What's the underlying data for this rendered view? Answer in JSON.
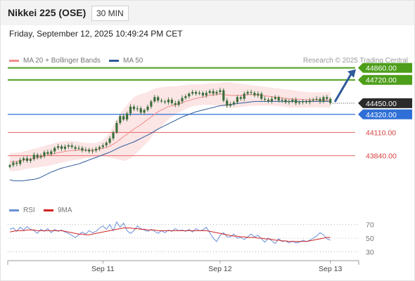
{
  "header": {
    "title": "Nikkei 225 (OSE)",
    "timeframe": "30 MIN",
    "datetime": "Friday, September 12, 2025 10:49:24 PM CET"
  },
  "legend": {
    "ma20_label": "MA 20 + Bollinger Bands",
    "ma50_label": "MA 50",
    "rsi_label": "RSI",
    "rsi9ma_label": "9MA",
    "credit": "Research © 2025 Trading Central"
  },
  "colors": {
    "ma20": "#f28b8b",
    "ma50": "#2d5a9a",
    "bollinger_fill": "#fbdcdc",
    "candle": "#3c6e3c",
    "resistance": "#4d9e1a",
    "support_pivot": "#2f6fd6",
    "support": "#e86a6a",
    "last_price": "#2b2b2b",
    "rsi": "#6a8fd8",
    "rsi_ma": "#d22222"
  },
  "chart_data": {
    "type": "candlestick",
    "price_levels": [
      {
        "label": "44860.00",
        "value": 44860,
        "kind": "resistance"
      },
      {
        "label": "44720.00",
        "value": 44720,
        "kind": "resistance"
      },
      {
        "label": "44450.00",
        "value": 44450,
        "kind": "last"
      },
      {
        "label": "44320.00",
        "value": 44320,
        "kind": "pivot"
      },
      {
        "label": "44110.00",
        "value": 44110,
        "kind": "support"
      },
      {
        "label": "43840.00",
        "value": 43840,
        "kind": "support"
      }
    ],
    "x_tick_labels": [
      "Sep 11",
      "Sep 12",
      "Sep 13"
    ],
    "x_tick_index": [
      27,
      61,
      93
    ],
    "rsi_ticks": [
      70,
      50,
      30
    ],
    "rsi_range": [
      20,
      80
    ],
    "price_range": [
      43380,
      44930
    ],
    "closes": [
      43730,
      43760,
      43745,
      43790,
      43810,
      43780,
      43800,
      43850,
      43820,
      43835,
      43880,
      43860,
      43890,
      43930,
      43950,
      43920,
      43945,
      43960,
      43940,
      43920,
      43930,
      43900,
      43910,
      43890,
      43900,
      43920,
      43940,
      43960,
      43990,
      44040,
      44110,
      44220,
      44300,
      44260,
      44330,
      44410,
      44380,
      44390,
      44340,
      44370,
      44410,
      44470,
      44520,
      44480,
      44470,
      44460,
      44490,
      44450,
      44430,
      44470,
      44510,
      44530,
      44560,
      44580,
      44560,
      44570,
      44540,
      44570,
      44590,
      44560,
      44580,
      44600,
      44480,
      44420,
      44440,
      44460,
      44520,
      44500,
      44560,
      44580,
      44570,
      44540,
      44560,
      44500,
      44490,
      44470,
      44500,
      44520,
      44480,
      44490,
      44460,
      44470,
      44490,
      44450,
      44460,
      44470,
      44460,
      44480,
      44490,
      44500,
      44470,
      44520,
      44500,
      44450
    ],
    "ma20": [
      43770,
      43770,
      43775,
      43780,
      43790,
      43795,
      43800,
      43810,
      43815,
      43825,
      43835,
      43845,
      43855,
      43865,
      43875,
      43880,
      43890,
      43895,
      43900,
      43900,
      43905,
      43905,
      43905,
      43905,
      43905,
      43910,
      43915,
      43925,
      43935,
      43950,
      43975,
      44000,
      44030,
      44060,
      44090,
      44120,
      44150,
      44175,
      44200,
      44230,
      44260,
      44290,
      44320,
      44350,
      44370,
      44390,
      44410,
      44420,
      44430,
      44440,
      44455,
      44470,
      44480,
      44495,
      44505,
      44515,
      44520,
      44530,
      44540,
      44545,
      44550,
      44555,
      44550,
      44545,
      44540,
      44540,
      44540,
      44540,
      44545,
      44550,
      44550,
      44545,
      44545,
      44540,
      44535,
      44530,
      44525,
      44520,
      44515,
      44510,
      44505,
      44500,
      44500,
      44495,
      44495,
      44490,
      44490,
      44490,
      44490,
      44490,
      44485,
      44485,
      44485,
      44485
    ],
    "bb_upper": [
      43870,
      43870,
      43875,
      43880,
      43890,
      43900,
      43910,
      43920,
      43930,
      43940,
      43955,
      43965,
      43975,
      43985,
      43995,
      44000,
      44005,
      44010,
      44010,
      44005,
      44000,
      43995,
      43990,
      43985,
      43985,
      43990,
      44000,
      44020,
      44060,
      44110,
      44180,
      44260,
      44330,
      44380,
      44430,
      44480,
      44520,
      44540,
      44555,
      44565,
      44580,
      44600,
      44620,
      44630,
      44635,
      44640,
      44645,
      44645,
      44645,
      44650,
      44655,
      44660,
      44665,
      44670,
      44670,
      44670,
      44670,
      44675,
      44680,
      44680,
      44680,
      44685,
      44690,
      44690,
      44690,
      44685,
      44680,
      44675,
      44670,
      44665,
      44660,
      44655,
      44650,
      44645,
      44640,
      44635,
      44630,
      44625,
      44620,
      44615,
      44610,
      44605,
      44600,
      44595,
      44590,
      44585,
      44580,
      44575,
      44575,
      44575,
      44575,
      44575,
      44575,
      44575
    ],
    "bb_lower": [
      43660,
      43660,
      43665,
      43670,
      43680,
      43690,
      43695,
      43700,
      43705,
      43710,
      43715,
      43720,
      43730,
      43740,
      43750,
      43760,
      43770,
      43780,
      43785,
      43790,
      43795,
      43800,
      43810,
      43815,
      43820,
      43825,
      43830,
      43830,
      43825,
      43820,
      43810,
      43800,
      43790,
      43780,
      43790,
      43810,
      43840,
      43880,
      43920,
      43960,
      44000,
      44050,
      44100,
      44140,
      44180,
      44220,
      44260,
      44290,
      44320,
      44340,
      44360,
      44380,
      44400,
      44410,
      44420,
      44425,
      44430,
      44430,
      44430,
      44425,
      44420,
      44420,
      44410,
      44400,
      44395,
      44395,
      44400,
      44405,
      44410,
      44415,
      44420,
      44420,
      44420,
      44420,
      44420,
      44420,
      44420,
      44420,
      44415,
      44410,
      44405,
      44400,
      44400,
      44400,
      44400,
      44400,
      44400,
      44400,
      44400,
      44405,
      44400,
      44400,
      44400,
      44395
    ],
    "ma50": [
      43560,
      43550,
      43550,
      43550,
      43550,
      43555,
      43560,
      43565,
      43575,
      43590,
      43610,
      43630,
      43650,
      43665,
      43680,
      43695,
      43705,
      43715,
      43725,
      43735,
      43745,
      43760,
      43775,
      43790,
      43805,
      43820,
      43835,
      43850,
      43865,
      43880,
      43900,
      43920,
      43940,
      43955,
      43970,
      43985,
      44000,
      44020,
      44040,
      44060,
      44080,
      44100,
      44125,
      44150,
      44170,
      44190,
      44210,
      44230,
      44250,
      44270,
      44290,
      44305,
      44320,
      44335,
      44350,
      44360,
      44370,
      44380,
      44390,
      44400,
      44410,
      44420,
      44425,
      44430,
      44435,
      44440,
      44445,
      44450,
      44455,
      44460,
      44465,
      44470,
      44470,
      44470,
      44470,
      44470,
      44470,
      44470,
      44470,
      44470,
      44470,
      44470,
      44470,
      44470,
      44470,
      44470,
      44470,
      44470,
      44470,
      44470,
      44470,
      44470,
      44470,
      44470
    ],
    "rsi": [
      63,
      65,
      60,
      66,
      62,
      67,
      63,
      61,
      57,
      63,
      60,
      64,
      58,
      63,
      60,
      62,
      59,
      57,
      54,
      51,
      55,
      59,
      56,
      61,
      58,
      60,
      65,
      68,
      63,
      70,
      61,
      74,
      66,
      72,
      61,
      57,
      61,
      68,
      64,
      62,
      60,
      63,
      60,
      57,
      61,
      58,
      62,
      60,
      64,
      61,
      62,
      60,
      63,
      59,
      64,
      61,
      62,
      66,
      58,
      50,
      45,
      54,
      58,
      52,
      52,
      56,
      50,
      51,
      48,
      52,
      56,
      52,
      54,
      49,
      44,
      50,
      46,
      42,
      49,
      45,
      46,
      43,
      46,
      43,
      44,
      47,
      45,
      47,
      50,
      53,
      58,
      55,
      49,
      47
    ],
    "rsi_ma": [
      59,
      60,
      61,
      61,
      61,
      62,
      62,
      62,
      61,
      61,
      61,
      61,
      61,
      61,
      61,
      61,
      60,
      59,
      58,
      57,
      56,
      56,
      55,
      55,
      56,
      57,
      58,
      59,
      60,
      61,
      62,
      63,
      64,
      65,
      65,
      65,
      64,
      64,
      63,
      63,
      62,
      62,
      62,
      61,
      61,
      61,
      61,
      61,
      61,
      61,
      61,
      61,
      61,
      61,
      61,
      61,
      61,
      61,
      60,
      59,
      58,
      57,
      56,
      55,
      54,
      53,
      53,
      52,
      52,
      51,
      51,
      51,
      50,
      50,
      49,
      49,
      48,
      47,
      47,
      46,
      46,
      45,
      45,
      45,
      45,
      45,
      45,
      46,
      47,
      48,
      49,
      50,
      51,
      51
    ]
  }
}
